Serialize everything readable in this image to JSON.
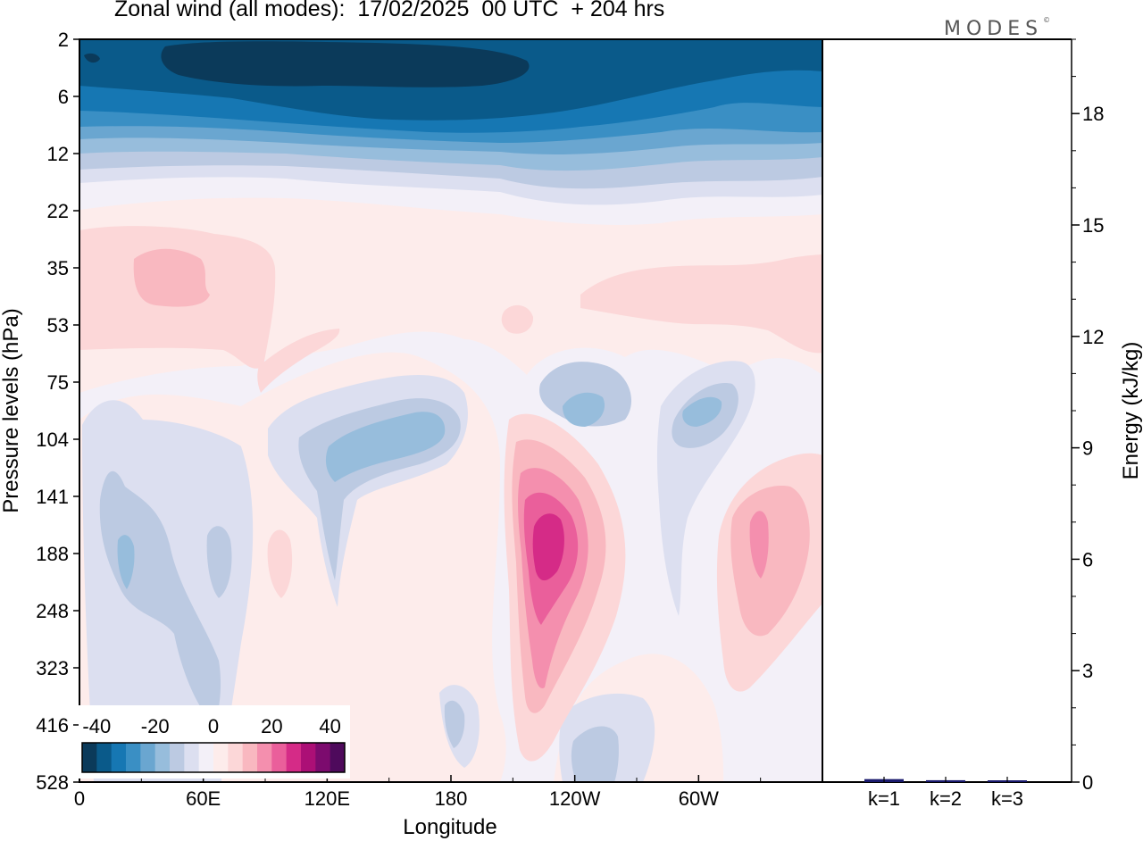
{
  "title": "Zonal wind (all modes):  17/02/2025  00 UTC  + 204 hrs",
  "logo": "MODES",
  "logo_mark": "©",
  "chart_data": [
    {
      "type": "heatmap",
      "title": "Zonal wind (all modes):  17/02/2025  00 UTC  + 204 hrs",
      "xlabel": "Longitude",
      "ylabel": "Pressure levels (hPa)",
      "x_ticks": [
        "0",
        "60E",
        "120E",
        "180",
        "120W",
        "60W"
      ],
      "x_tick_values": [
        0,
        60,
        120,
        180,
        240,
        300
      ],
      "xlim": [
        0,
        360
      ],
      "y_ticks": [
        "2",
        "6",
        "12",
        "22",
        "35",
        "53",
        "75",
        "104",
        "141",
        "188",
        "248",
        "323",
        "416",
        "528"
      ],
      "colorbar": {
        "tick_labels": [
          "-40",
          "-20",
          "0",
          "20",
          "40"
        ],
        "tick_values": [
          -40,
          -20,
          0,
          20,
          40
        ],
        "levels": [
          -45,
          -40,
          -35,
          -30,
          -25,
          -20,
          -15,
          -10,
          -5,
          0,
          5,
          10,
          15,
          20,
          25,
          30,
          35,
          40,
          45
        ],
        "colors": [
          "#0b3a5a",
          "#0a5a8a",
          "#1677b3",
          "#3a8fc4",
          "#6aa6d0",
          "#97bddc",
          "#bccae2",
          "#dcdff0",
          "#f3f0f8",
          "#fdeceb",
          "#fcd7d8",
          "#f9b8c0",
          "#f48fae",
          "#ea5f9b",
          "#d52b87",
          "#ac0f76",
          "#7c0b6e",
          "#4e0a5c"
        ]
      },
      "field_features": [
        {
          "description": "strong easterly core",
          "lon": 80,
          "level": "4",
          "value": -45
        },
        {
          "description": "easterly belt",
          "lon": 180,
          "level": "8",
          "value": -35
        },
        {
          "description": "westerly maximum",
          "lon": 232,
          "level": "175",
          "value": 32
        },
        {
          "description": "westerly maximum",
          "lon": 330,
          "level": "188",
          "value": 18
        },
        {
          "description": "westerly band",
          "lon": 30,
          "level": "40",
          "value": 12
        },
        {
          "description": "easterly region",
          "lon": 160,
          "level": "110",
          "value": -18
        },
        {
          "description": "easterly region",
          "lon": 20,
          "level": "200",
          "value": -15
        },
        {
          "description": "easterly region",
          "lon": 298,
          "level": "110",
          "value": -14
        },
        {
          "description": "easterly region",
          "lon": 240,
          "level": "100",
          "value": -14
        },
        {
          "description": "easterly region",
          "lon": 245,
          "level": "500",
          "value": -14
        }
      ]
    },
    {
      "type": "bar",
      "ylabel": "Energy (kJ/kg)",
      "categories": [
        "k=1",
        "k=2",
        "k=3"
      ],
      "values": [
        0.08,
        0.05,
        0.04
      ],
      "ylim": [
        0,
        20
      ],
      "y_ticks": [
        0,
        3,
        6,
        9,
        12,
        15,
        18
      ],
      "bar_color": "#1a1a6e"
    }
  ]
}
